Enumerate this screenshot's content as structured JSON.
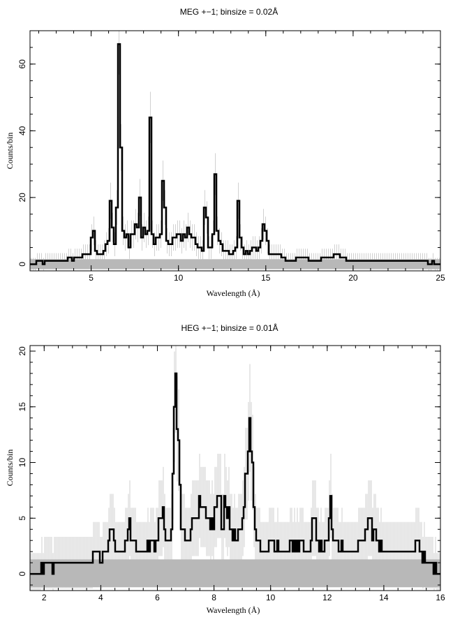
{
  "chart_data": [
    {
      "type": "line",
      "title": "MEG +−1; binsize = 0.02Å",
      "xlabel": "Wavelength (Å)",
      "ylabel": "Counts/bin",
      "xlim": [
        1.5,
        25
      ],
      "ylim": [
        -2,
        70
      ],
      "xticks": [
        5,
        10,
        15,
        20,
        25
      ],
      "yticks": [
        0,
        20,
        40,
        60
      ],
      "grid": false,
      "series": [
        {
          "role": "counts",
          "x": [
            1.5,
            2.5,
            3.5,
            4.2,
            4.6,
            4.9,
            5.0,
            5.1,
            5.3,
            5.6,
            5.8,
            6.0,
            6.15,
            6.3,
            6.45,
            6.6,
            6.65,
            6.7,
            6.75,
            6.85,
            7.0,
            7.1,
            7.2,
            7.35,
            7.5,
            7.7,
            7.8,
            7.9,
            8.05,
            8.2,
            8.3,
            8.42,
            8.5,
            8.6,
            8.8,
            9.0,
            9.17,
            9.25,
            9.4,
            9.6,
            9.8,
            10.0,
            10.2,
            10.5,
            10.8,
            11.0,
            11.2,
            11.4,
            11.55,
            11.7,
            11.9,
            12.02,
            12.13,
            12.25,
            12.5,
            12.8,
            13.1,
            13.3,
            13.45,
            13.55,
            13.7,
            14.0,
            14.3,
            14.6,
            14.85,
            15.0,
            15.2,
            15.5,
            16.0,
            16.5,
            17.0,
            18.0,
            19.0,
            20.0,
            21.0,
            22.0,
            23.0,
            24.0,
            25.0
          ],
          "values": [
            0,
            1,
            1,
            2,
            3,
            3,
            6,
            11,
            4,
            3,
            4,
            7,
            20,
            6,
            5,
            61,
            55,
            45,
            20,
            8,
            7,
            9,
            6,
            10,
            11,
            12,
            19,
            9,
            12,
            8,
            11,
            45,
            10,
            7,
            9,
            8,
            41,
            12,
            6,
            7,
            8,
            9,
            7,
            11,
            8,
            7,
            5,
            4,
            21,
            5,
            6,
            9,
            29,
            7,
            5,
            3,
            3,
            4,
            19,
            8,
            4,
            3,
            5,
            4,
            11,
            10,
            4,
            3,
            2,
            1,
            2,
            1,
            3,
            1,
            1,
            1,
            1,
            1,
            0
          ]
        },
        {
          "role": "error-band",
          "values": [
            -1.5,
            1.5
          ]
        }
      ]
    },
    {
      "type": "line",
      "title": "HEG +−1; binsize = 0.01Å",
      "xlabel": "Wavelength (Å)",
      "ylabel": "Counts/bin",
      "xlim": [
        1.5,
        16
      ],
      "ylim": [
        -1.5,
        20.5
      ],
      "xticks": [
        2,
        4,
        6,
        8,
        10,
        12,
        14,
        16
      ],
      "yticks": [
        0,
        5,
        10,
        15,
        20
      ],
      "grid": false,
      "series": [
        {
          "role": "counts",
          "x": [
            1.5,
            2.5,
            3.5,
            4.2,
            4.35,
            4.6,
            4.95,
            5.02,
            5.1,
            5.5,
            6.0,
            6.15,
            6.3,
            6.5,
            6.6,
            6.65,
            6.7,
            6.75,
            6.85,
            7.0,
            7.3,
            7.5,
            7.7,
            7.85,
            8.0,
            8.2,
            8.3,
            8.4,
            8.6,
            8.8,
            9.0,
            9.15,
            9.2,
            9.25,
            9.3,
            9.45,
            9.7,
            10.0,
            10.3,
            10.6,
            11.0,
            11.4,
            11.5,
            11.8,
            12.0,
            12.13,
            12.2,
            12.6,
            13.0,
            13.45,
            13.55,
            14.0,
            14.5,
            15.0,
            15.2,
            15.5,
            16.0
          ],
          "values": [
            0,
            1,
            1,
            2,
            4,
            2,
            3,
            5,
            3,
            2,
            3,
            6,
            3,
            3,
            15,
            16,
            12,
            12,
            4,
            3,
            5,
            6,
            5,
            4,
            5,
            7,
            4,
            7,
            4,
            3,
            4,
            9,
            13,
            13,
            12,
            4,
            2,
            3,
            2,
            2,
            3,
            2,
            5,
            2,
            3,
            7,
            3,
            2,
            2,
            4,
            4,
            2,
            2,
            2,
            3,
            1,
            0
          ]
        },
        {
          "role": "error-band",
          "values": [
            -1.2,
            1.3
          ]
        }
      ]
    }
  ]
}
